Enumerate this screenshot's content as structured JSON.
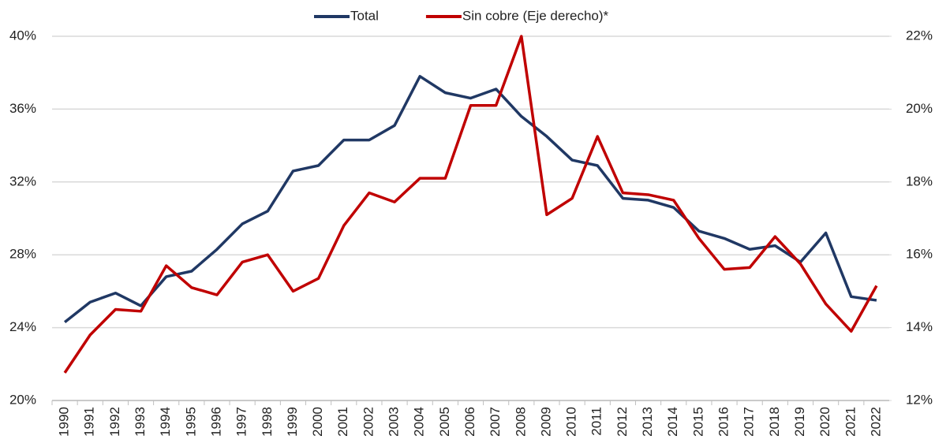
{
  "chart_data": {
    "type": "line",
    "categories": [
      "1990",
      "1991",
      "1992",
      "1993",
      "1994",
      "1995",
      "1996",
      "1997",
      "1998",
      "1999",
      "2000",
      "2001",
      "2002",
      "2003",
      "2004",
      "2005",
      "2006",
      "2007",
      "2008",
      "2009",
      "2010",
      "2011",
      "2012",
      "2013",
      "2014",
      "2015",
      "2016",
      "2017",
      "2018",
      "2019",
      "2020",
      "2021",
      "2022"
    ],
    "series": [
      {
        "name": "Total",
        "color": "#203864",
        "values": [
          24.3,
          25.4,
          25.9,
          25.2,
          26.8,
          27.1,
          28.3,
          29.7,
          30.4,
          32.6,
          32.9,
          34.3,
          34.3,
          35.1,
          37.8,
          36.9,
          36.6,
          37.1,
          35.6,
          34.5,
          33.2,
          32.9,
          31.1,
          31.0,
          30.6,
          29.3,
          28.9,
          28.3,
          28.5,
          27.6,
          29.2,
          25.7,
          25.5
        ]
      },
      {
        "name": "Sin cobre (Eje derecho)*",
        "color": "#c00000",
        "axis": "y2",
        "values": [
          12.76,
          13.8,
          14.5,
          14.45,
          15.7,
          15.1,
          14.9,
          15.8,
          16.0,
          15.0,
          15.35,
          16.8,
          17.7,
          17.45,
          18.1,
          18.1,
          20.1,
          20.1,
          22.0,
          17.1,
          17.55,
          19.25,
          17.7,
          17.65,
          17.5,
          16.45,
          15.6,
          15.65,
          16.5,
          15.75,
          14.65,
          13.9,
          15.15
        ]
      }
    ],
    "ylim": [
      20,
      40
    ],
    "yticks": [
      {
        "value": 20,
        "label": "20%"
      },
      {
        "value": 24,
        "label": "24%"
      },
      {
        "value": 28,
        "label": "28%"
      },
      {
        "value": 32,
        "label": "32%"
      },
      {
        "value": 36,
        "label": "36%"
      },
      {
        "value": 40,
        "label": "40%"
      }
    ],
    "y2lim": [
      12,
      22
    ],
    "y2ticks": [
      {
        "value": 12,
        "label": "12%"
      },
      {
        "value": 14,
        "label": "14%"
      },
      {
        "value": 16,
        "label": "16%"
      },
      {
        "value": 18,
        "label": "18%"
      },
      {
        "value": 20,
        "label": "20%"
      },
      {
        "value": 22,
        "label": "22%"
      }
    ],
    "grid": true,
    "legend": "top"
  }
}
